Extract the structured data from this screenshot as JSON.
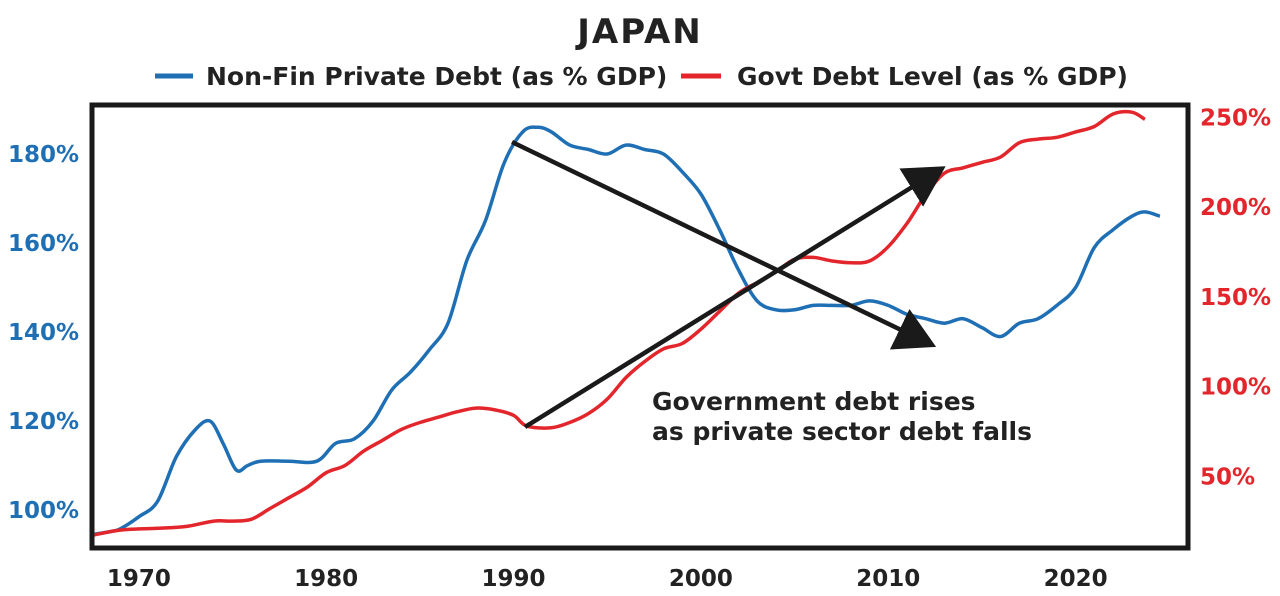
{
  "colors": {
    "left": "#1f6fb5",
    "right": "#e3262c",
    "ink": "#1a1a1a"
  },
  "chart_data": {
    "type": "line",
    "title": "JAPAN",
    "legend_position": "top",
    "grid": false,
    "xlabel": "",
    "x_ticks": [
      "1970",
      "1980",
      "1990",
      "2000",
      "2010",
      "2020"
    ],
    "y_left_ticks": [
      "100%",
      "120%",
      "140%",
      "160%",
      "180%"
    ],
    "y_right_ticks": [
      "50%",
      "100%",
      "150%",
      "200%",
      "250%"
    ],
    "xlim": [
      1967.5,
      2026
    ],
    "ylim_left": [
      91.5,
      191
    ],
    "ylim_right": [
      10,
      257
    ],
    "annotation": [
      "Government debt rises",
      "as private sector debt falls"
    ],
    "series": [
      {
        "name": "Non-Fin Private Debt (as % GDP)",
        "axis": "left",
        "x": [
          1967.5,
          1968.5,
          1969,
          1970,
          1971,
          1972,
          1973,
          1973.8,
          1974.5,
          1975.2,
          1975.8,
          1976.5,
          1978,
          1979.5,
          1980.5,
          1981.5,
          1982.5,
          1983.5,
          1984.5,
          1985.5,
          1986.5,
          1987.5,
          1988.5,
          1989.5,
          1990.5,
          1991.3,
          1992,
          1993,
          1994,
          1995,
          1996,
          1997,
          1998,
          1999,
          2000,
          2001,
          2002,
          2003,
          2004,
          2005,
          2006,
          2007,
          2008,
          2009,
          2010,
          2011,
          2012,
          2013,
          2014,
          2015,
          2016,
          2017,
          2018,
          2019,
          2020,
          2021,
          2022,
          2023,
          2023.7,
          2024.5
        ],
        "values": [
          94.5,
          95.2,
          95.8,
          98.5,
          102,
          112,
          118,
          120,
          115,
          109,
          110,
          111,
          111,
          111,
          115,
          116,
          120,
          127,
          131,
          136,
          142,
          156,
          165,
          178,
          185,
          186,
          185,
          182,
          181,
          180,
          182,
          181,
          180,
          176,
          171,
          163,
          154,
          147,
          145,
          145,
          146,
          146,
          146,
          147,
          146,
          144,
          143,
          142,
          143,
          141,
          139,
          142,
          143,
          146,
          150,
          159,
          163,
          166,
          167,
          166
        ]
      },
      {
        "name": "Govt Debt Level (as % GDP)",
        "axis": "right",
        "x": [
          1967.5,
          1969,
          1971,
          1972.5,
          1974,
          1975,
          1976,
          1977,
          1978,
          1979,
          1980,
          1981,
          1982,
          1983,
          1984,
          1985,
          1986,
          1987,
          1988,
          1989,
          1990,
          1990.7,
          1992,
          1993,
          1994,
          1995,
          1996,
          1997,
          1998,
          1999,
          2000,
          2001,
          2002,
          2003,
          2004,
          2005,
          2006,
          2007,
          2008,
          2009,
          2010,
          2011,
          2012,
          2013,
          2014,
          2015,
          2016,
          2017,
          2018,
          2019,
          2020,
          2021,
          2022,
          2023,
          2023.7
        ],
        "values": [
          17,
          20,
          21,
          22,
          25,
          25,
          26,
          32,
          38,
          44,
          52,
          56,
          64,
          70,
          76,
          80,
          83,
          86,
          88,
          87,
          84,
          78,
          77,
          80,
          85,
          93,
          105,
          114,
          121,
          124,
          132,
          142,
          152,
          158,
          164,
          171,
          172,
          170,
          169,
          170,
          178,
          191,
          207,
          219,
          222,
          225,
          228,
          236,
          238,
          239,
          242,
          245,
          252,
          253,
          249
        ]
      }
    ]
  }
}
